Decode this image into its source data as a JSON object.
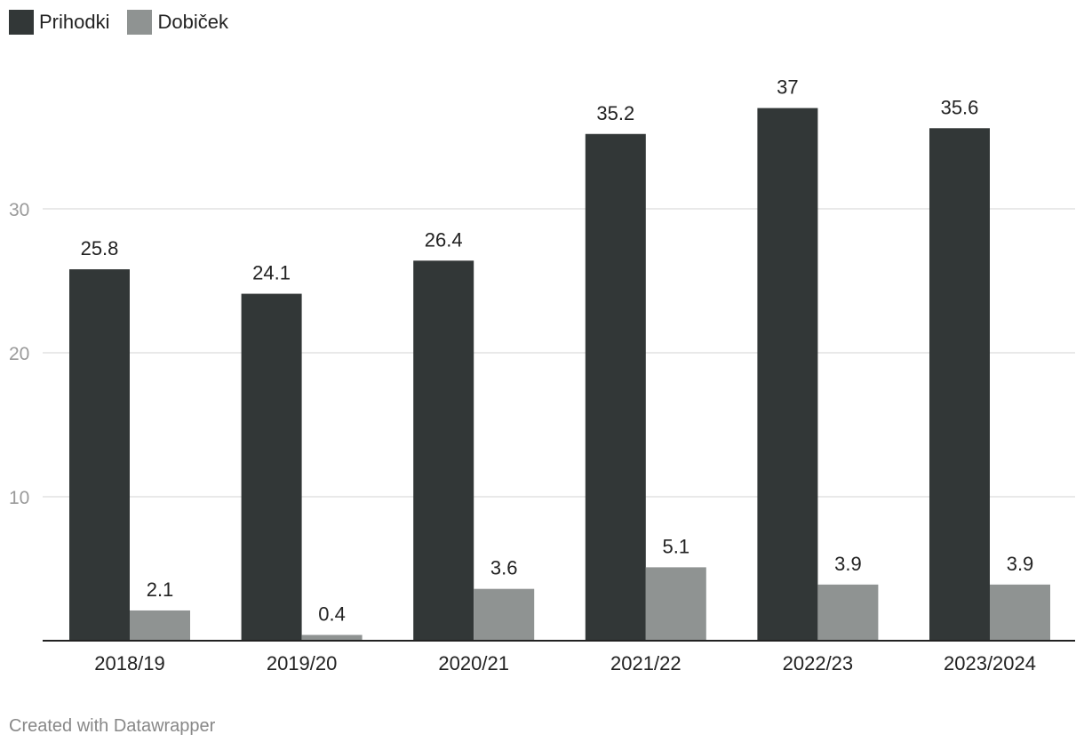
{
  "legend": [
    {
      "name": "Prihodki",
      "color": "#323737"
    },
    {
      "name": "Dobiček",
      "color": "#8f9392"
    }
  ],
  "footer": "Created with Datawrapper",
  "chart_data": {
    "type": "bar",
    "categories": [
      "2018/19",
      "2019/20",
      "2020/21",
      "2021/22",
      "2022/23",
      "2023/2024"
    ],
    "series": [
      {
        "name": "Prihodki",
        "values": [
          25.8,
          24.1,
          26.4,
          35.2,
          37,
          35.6
        ],
        "labels": [
          "25.8",
          "24.1",
          "26.4",
          "35.2",
          "37",
          "35.6"
        ],
        "color": "#323737"
      },
      {
        "name": "Dobiček",
        "values": [
          2.1,
          0.4,
          3.6,
          5.1,
          3.9,
          3.9
        ],
        "labels": [
          "2.1",
          "0.4",
          "3.6",
          "5.1",
          "3.9",
          "3.9"
        ],
        "color": "#8f9392"
      }
    ],
    "yticks": [
      10,
      20,
      30
    ],
    "ylim": [
      0,
      40
    ],
    "grid": true,
    "legend_position": "top-left",
    "xlabel": "",
    "ylabel": ""
  }
}
